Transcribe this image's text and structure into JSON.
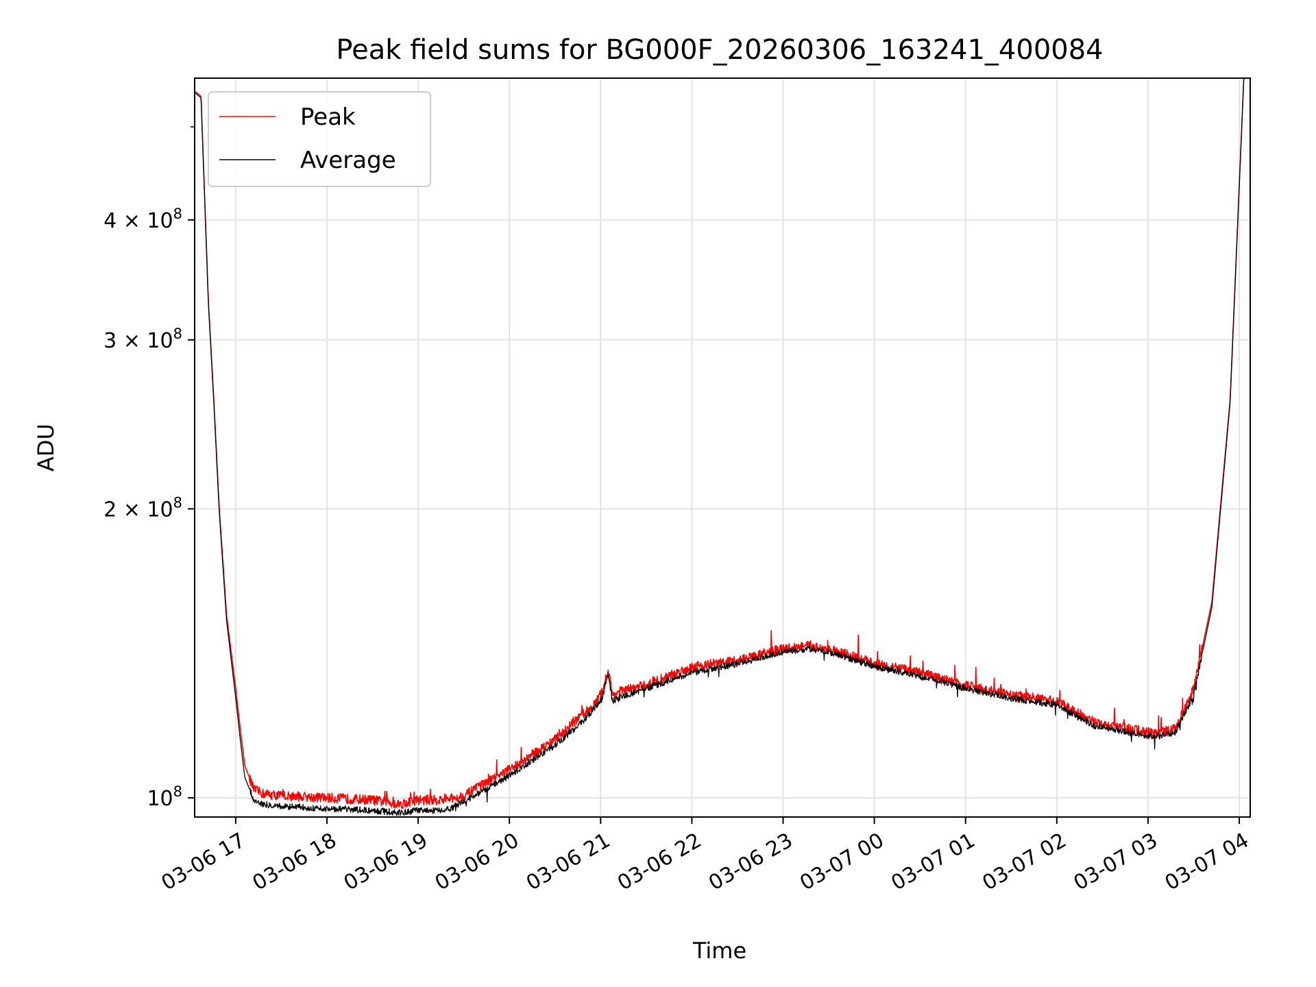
{
  "chart_data": {
    "type": "line",
    "title": "Peak field sums for BG000F_20260306_163241_400084",
    "xlabel": "Time",
    "ylabel": "ADU",
    "yscale": "log",
    "grid": true,
    "legend_position": "top-left",
    "x_unit": "hours since 03-06 16:00",
    "xlim": [
      0.55,
      12.12
    ],
    "ylim": [
      95500000.0,
      562000000.0
    ],
    "x_ticks": [
      {
        "value": 1,
        "label": "03-06 17"
      },
      {
        "value": 2,
        "label": "03-06 18"
      },
      {
        "value": 3,
        "label": "03-06 19"
      },
      {
        "value": 4,
        "label": "03-06 20"
      },
      {
        "value": 5,
        "label": "03-06 21"
      },
      {
        "value": 6,
        "label": "03-06 22"
      },
      {
        "value": 7,
        "label": "03-06 23"
      },
      {
        "value": 8,
        "label": "03-07 00"
      },
      {
        "value": 9,
        "label": "03-07 01"
      },
      {
        "value": 10,
        "label": "03-07 02"
      },
      {
        "value": 11,
        "label": "03-07 03"
      },
      {
        "value": 12,
        "label": "03-07 04"
      }
    ],
    "y_ticks": [
      {
        "value": 100000000,
        "base": "10",
        "exp": "8"
      },
      {
        "value": 200000000,
        "base": "2 × 10",
        "exp": "8"
      },
      {
        "value": 300000000,
        "base": "3 × 10",
        "exp": "8"
      },
      {
        "value": 400000000,
        "base": "4 × 10",
        "exp": "8"
      }
    ],
    "series": [
      {
        "name": "Peak",
        "color": "#ff0000",
        "x": [
          0.55,
          0.62,
          0.7,
          0.76,
          0.82,
          0.9,
          1.0,
          1.05,
          1.1,
          1.2,
          1.3,
          1.5,
          2.0,
          2.5,
          2.8,
          3.0,
          3.3,
          3.5,
          4.0,
          4.5,
          4.8,
          4.93,
          5.02,
          5.08,
          5.13,
          5.2,
          5.5,
          6.0,
          6.5,
          7.0,
          7.3,
          7.6,
          8.0,
          8.5,
          9.0,
          9.5,
          10.0,
          10.4,
          10.8,
          11.0,
          11.15,
          11.3,
          11.5,
          11.7,
          11.9,
          12.05
        ],
        "y": [
          545000000.0,
          538000000.0,
          330000000.0,
          260000000.0,
          200000000.0,
          155000000.0,
          130000000.0,
          118000000.0,
          108000000.0,
          102000000.0,
          101000000.0,
          100500000.0,
          100000000.0,
          99500000.0,
          98500000.0,
          99500000.0,
          99500000.0,
          100500000.0,
          107000000.0,
          115000000.0,
          122000000.0,
          125000000.0,
          129000000.0,
          136000000.0,
          128000000.0,
          129000000.0,
          131000000.0,
          137000000.0,
          139000000.0,
          143000000.0,
          144000000.0,
          142000000.0,
          138000000.0,
          135000000.0,
          131000000.0,
          128000000.0,
          126000000.0,
          120000000.0,
          118000000.0,
          117000000.0,
          117000000.0,
          118000000.0,
          130000000.0,
          160000000.0,
          260000000.0,
          562000000.0
        ]
      },
      {
        "name": "Average",
        "color": "#000000",
        "x": [
          0.55,
          0.62,
          0.7,
          0.76,
          0.82,
          0.9,
          1.0,
          1.05,
          1.1,
          1.2,
          1.3,
          1.5,
          2.0,
          2.5,
          2.8,
          3.0,
          3.3,
          3.5,
          4.0,
          4.5,
          4.8,
          4.93,
          5.02,
          5.08,
          5.13,
          5.2,
          5.5,
          6.0,
          6.5,
          7.0,
          7.3,
          7.6,
          8.0,
          8.5,
          9.0,
          9.5,
          10.0,
          10.4,
          10.8,
          11.0,
          11.15,
          11.3,
          11.5,
          11.7,
          11.9,
          12.05
        ],
        "y": [
          543000000.0,
          536000000.0,
          328000000.0,
          258000000.0,
          198000000.0,
          153000000.0,
          127000000.0,
          115000000.0,
          105000000.0,
          99500000.0,
          98500000.0,
          98000000.0,
          97500000.0,
          97000000.0,
          96500000.0,
          97000000.0,
          97000000.0,
          99000000.0,
          105500000.0,
          113500000.0,
          120000000.0,
          124000000.0,
          127000000.0,
          135000000.0,
          126000000.0,
          127000000.0,
          130000000.0,
          135000000.0,
          138000000.0,
          142000000.0,
          143000000.0,
          141000000.0,
          137000000.0,
          134000000.0,
          130000000.0,
          127000000.0,
          125000000.0,
          119000000.0,
          117000000.0,
          116000000.0,
          116000000.0,
          117000000.0,
          128000000.0,
          158000000.0,
          258000000.0,
          562000000.0
        ]
      }
    ]
  }
}
